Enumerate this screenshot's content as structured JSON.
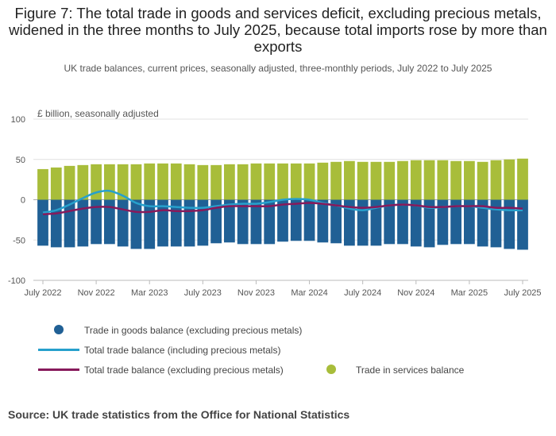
{
  "figure": {
    "title": "Figure 7: The total trade in goods and services deficit, excluding precious metals, widened in the three months to July 2025, because total imports rose by more than exports",
    "subtitle": "UK trade balances, current prices, seasonally adjusted, three-monthly periods, July 2022 to July 2025",
    "source": "Source: UK trade statistics from the Office for National Statistics"
  },
  "colors": {
    "goods": "#206095",
    "services": "#a8bd3a",
    "total_incl": "#27a0cc",
    "total_excl": "#871a5b",
    "grid": "#e0e0e0",
    "zero": "#aaaaaa"
  },
  "legend": [
    {
      "label": "Trade in goods balance (excluding precious metals)",
      "marker": "dot",
      "color": "#206095"
    },
    {
      "label": "Total trade balance (including precious metals)",
      "marker": "line",
      "color": "#27a0cc"
    },
    {
      "label": "Total trade balance (excluding precious metals)",
      "marker": "line",
      "color": "#871a5b"
    },
    {
      "label": "Trade in services balance",
      "marker": "dot",
      "color": "#a8bd3a"
    }
  ],
  "chart_data": {
    "type": "bar",
    "ylabel": "£ billion, seasonally adjusted",
    "ylim": [
      -100,
      100
    ],
    "yticks": [
      100,
      50,
      0,
      -50,
      -100
    ],
    "grid": true,
    "xtick_labels": [
      "July 2022",
      "Nov 2022",
      "Mar 2023",
      "July 2023",
      "Nov 2023",
      "Mar 2024",
      "July 2024",
      "Nov 2024",
      "Mar 2025",
      "July 2025"
    ],
    "categories": [
      "Jul 2022",
      "Aug 2022",
      "Sep 2022",
      "Oct 2022",
      "Nov 2022",
      "Dec 2022",
      "Jan 2023",
      "Feb 2023",
      "Mar 2023",
      "Apr 2023",
      "May 2023",
      "Jun 2023",
      "Jul 2023",
      "Aug 2023",
      "Sep 2023",
      "Oct 2023",
      "Nov 2023",
      "Dec 2023",
      "Jan 2024",
      "Feb 2024",
      "Mar 2024",
      "Apr 2024",
      "May 2024",
      "Jun 2024",
      "Jul 2024",
      "Aug 2024",
      "Sep 2024",
      "Oct 2024",
      "Nov 2024",
      "Dec 2024",
      "Jan 2025",
      "Feb 2025",
      "Mar 2025",
      "Apr 2025",
      "May 2025",
      "Jun 2025",
      "Jul 2025"
    ],
    "series": [
      {
        "name": "Trade in goods balance (excluding precious metals)",
        "kind": "bar",
        "values": [
          -57,
          -59,
          -59,
          -58,
          -55,
          -55,
          -58,
          -61,
          -61,
          -58,
          -58,
          -58,
          -57,
          -54,
          -53,
          -55,
          -55,
          -55,
          -52,
          -51,
          -51,
          -53,
          -54,
          -57,
          -57,
          -57,
          -55,
          -55,
          -58,
          -59,
          -56,
          -55,
          -55,
          -58,
          -59,
          -61,
          -62
        ]
      },
      {
        "name": "Trade in services balance",
        "kind": "bar",
        "values": [
          38,
          40,
          42,
          43,
          44,
          44,
          44,
          44,
          45,
          45,
          45,
          44,
          43,
          43,
          44,
          44,
          45,
          45,
          45,
          45,
          45,
          46,
          47,
          48,
          47,
          47,
          47,
          48,
          49,
          49,
          49,
          48,
          48,
          47,
          49,
          50,
          51
        ]
      },
      {
        "name": "Total trade balance (including precious metals)",
        "kind": "line",
        "values": [
          -16,
          -13,
          -6,
          2,
          9,
          11,
          5,
          -4,
          -8,
          -8,
          -9,
          -10,
          -10,
          -8,
          -6,
          -5,
          -5,
          -3,
          0,
          1,
          0,
          -4,
          -7,
          -11,
          -13,
          -10,
          -7,
          -6,
          -7,
          -10,
          -9,
          -8,
          -8,
          -10,
          -12,
          -13,
          -13
        ]
      },
      {
        "name": "Total trade balance (excluding precious metals)",
        "kind": "line",
        "values": [
          -18,
          -17,
          -14,
          -11,
          -9,
          -9,
          -12,
          -15,
          -15,
          -13,
          -14,
          -14,
          -13,
          -10,
          -8,
          -8,
          -8,
          -8,
          -6,
          -5,
          -4,
          -5,
          -7,
          -9,
          -10,
          -9,
          -7,
          -6,
          -7,
          -9,
          -9,
          -8,
          -8,
          -8,
          -10,
          -10,
          -11
        ]
      }
    ]
  }
}
